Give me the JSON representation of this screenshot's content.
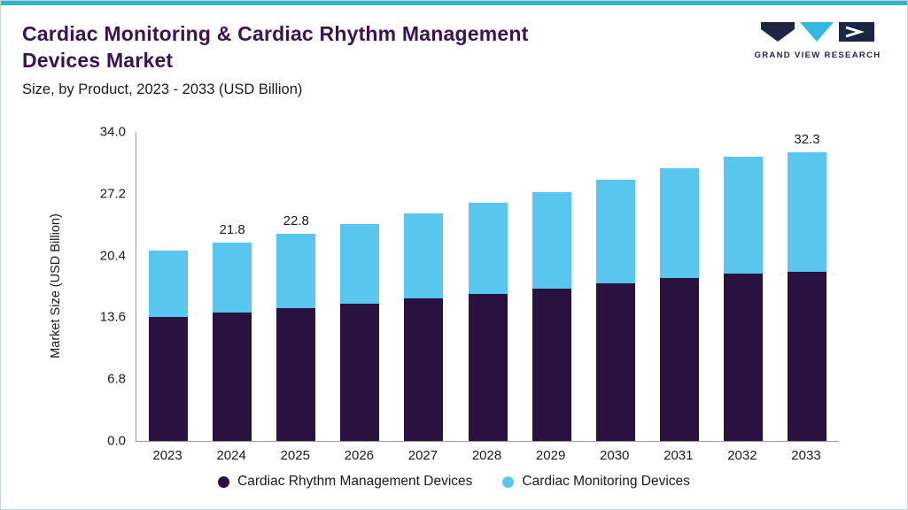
{
  "accent": {
    "top_bar_color": "#35b2c9"
  },
  "header": {
    "title_line1": "Cardiac Monitoring & Cardiac Rhythm Management",
    "title_line2": "Devices Market",
    "title_color": "#3d1152",
    "subtitle": "Size, by Product, 2023 - 2033 (USD Billion)",
    "logo_text": "GRAND VIEW RESEARCH"
  },
  "chart_data": {
    "type": "bar",
    "stacked": true,
    "title": "Cardiac Monitoring & Cardiac Rhythm Management Devices Market",
    "subtitle": "Size, by Product, 2023 - 2033 (USD Billion)",
    "xlabel": "",
    "ylabel": "Market Size (USD Billion)",
    "ylim": [
      0,
      34
    ],
    "yticks": [
      0,
      6.8,
      13.6,
      20.4,
      27.2,
      34
    ],
    "ytick_labels": [
      "0.0",
      "6.8",
      "13.6",
      "20.4",
      "27.2",
      "34.0"
    ],
    "grid": false,
    "legend_position": "bottom",
    "categories": [
      "2023",
      "2024",
      "2025",
      "2026",
      "2027",
      "2028",
      "2029",
      "2030",
      "2031",
      "2032",
      "2033"
    ],
    "series": [
      {
        "name": "Cardiac Rhythm Management Devices",
        "color": "#2a1240",
        "values": [
          13.6,
          14.1,
          14.6,
          15.1,
          15.7,
          16.2,
          16.8,
          17.3,
          17.9,
          18.4,
          18.9
        ]
      },
      {
        "name": "Cardiac Monitoring Devices",
        "color": "#59c6f0",
        "values": [
          7.3,
          7.7,
          8.2,
          8.8,
          9.3,
          10.0,
          10.6,
          11.4,
          12.1,
          12.9,
          13.4
        ]
      }
    ],
    "totals": [
      20.9,
      21.8,
      22.8,
      23.9,
      25.0,
      26.2,
      27.4,
      28.7,
      30.0,
      31.3,
      32.3
    ],
    "bar_value_labels": [
      "",
      "21.8",
      "22.8",
      "",
      "",
      "",
      "",
      "",
      "",
      "",
      "32.3"
    ]
  },
  "logo_colors": {
    "navy": "#1d2545",
    "cyan": "#35b8e0"
  }
}
